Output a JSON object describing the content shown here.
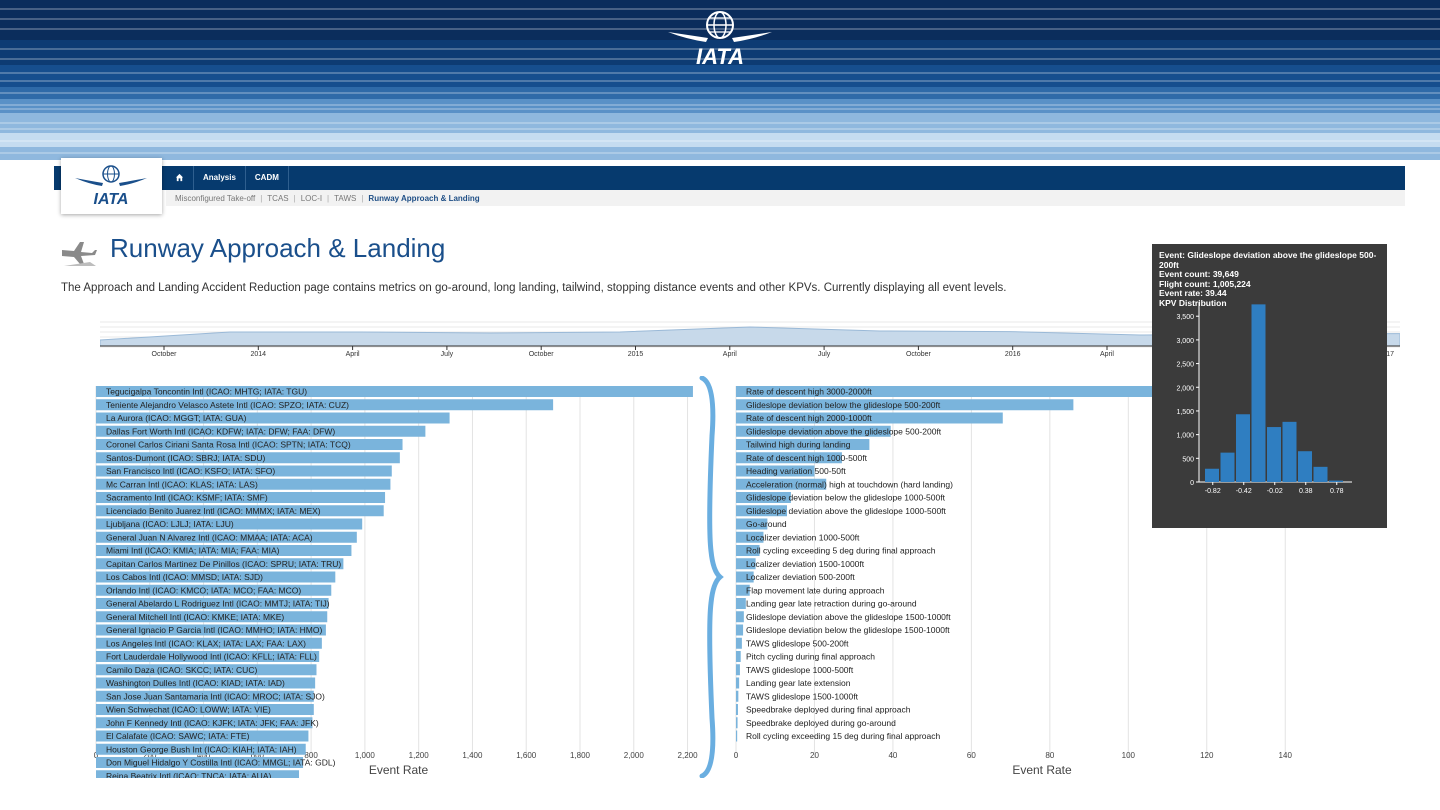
{
  "banner": {
    "brand": "IATA",
    "colors": [
      "#0b2d5c",
      "#0d3b73",
      "#164e8e",
      "#2f6aa8",
      "#5a91c7",
      "#8fb8de",
      "#c5dcf0"
    ]
  },
  "header": {
    "logo_text": "IATA",
    "nav": [
      {
        "label": "",
        "icon": "home-icon"
      },
      {
        "label": "Analysis"
      },
      {
        "label": "CADM"
      }
    ],
    "subnav": [
      {
        "label": "Misconfigured Take-off"
      },
      {
        "label": "TCAS"
      },
      {
        "label": "LOC-I"
      },
      {
        "label": "TAWS"
      },
      {
        "label": "Runway Approach & Landing",
        "active": true
      }
    ]
  },
  "page": {
    "title": "Runway Approach & Landing",
    "description": "The Approach and Landing Accident Reduction page contains metrics on go-around, long landing, tailwind, stopping distance events and other KPVs. Currently displaying all event levels."
  },
  "timeline": {
    "ticks": [
      "October",
      "2014",
      "April",
      "July",
      "October",
      "2015",
      "April",
      "July",
      "October",
      "2016",
      "April"
    ],
    "end_label": "17",
    "color": "#9ab9d7"
  },
  "airport_chart": {
    "xlabel": "Event Rate",
    "ticks": [
      "0",
      "200",
      "400",
      "600",
      "800",
      "1,000",
      "1,200",
      "1,400",
      "1,600",
      "1,800",
      "2,000",
      "2,200"
    ],
    "xlim": [
      0,
      2250
    ],
    "bar_color": "#7ab4dc",
    "items": [
      {
        "label": "Tegucigalpa Toncontin Intl (ICAO: MHTG; IATA: TGU)",
        "value": 2220
      },
      {
        "label": "Teniente Alejandro Velasco Astete Intl (ICAO: SPZO; IATA: CUZ)",
        "value": 1700
      },
      {
        "label": "La Aurora (ICAO: MGGT; IATA: GUA)",
        "value": 1315
      },
      {
        "label": "Dallas Fort Worth Intl (ICAO: KDFW; IATA: DFW; FAA: DFW)",
        "value": 1225
      },
      {
        "label": "Coronel Carlos Ciriani Santa Rosa Intl (ICAO: SPTN; IATA: TCQ)",
        "value": 1140
      },
      {
        "label": "Santos-Dumont (ICAO: SBRJ; IATA: SDU)",
        "value": 1130
      },
      {
        "label": "San Francisco Intl (ICAO: KSFO; IATA: SFO)",
        "value": 1100
      },
      {
        "label": "Mc Carran Intl (ICAO: KLAS; IATA: LAS)",
        "value": 1095
      },
      {
        "label": "Sacramento Intl (ICAO: KSMF; IATA: SMF)",
        "value": 1075
      },
      {
        "label": "Licenciado Benito Juarez Intl (ICAO: MMMX; IATA: MEX)",
        "value": 1070
      },
      {
        "label": "Ljubljana (ICAO: LJLJ; IATA: LJU)",
        "value": 990
      },
      {
        "label": "General Juan N Alvarez Intl (ICAO: MMAA; IATA: ACA)",
        "value": 970
      },
      {
        "label": "Miami Intl (ICAO: KMIA; IATA: MIA; FAA: MIA)",
        "value": 950
      },
      {
        "label": "Capitan Carlos Martinez De Pinillos (ICAO: SPRU; IATA: TRU)",
        "value": 920
      },
      {
        "label": "Los Cabos Intl (ICAO: MMSD; IATA: SJD)",
        "value": 890
      },
      {
        "label": "Orlando Intl (ICAO: KMCO; IATA: MCO; FAA: MCO)",
        "value": 875
      },
      {
        "label": "General Abelardo L Rodriguez Intl (ICAO: MMTJ; IATA: TIJ)",
        "value": 865
      },
      {
        "label": "General Mitchell Intl (ICAO: KMKE; IATA: MKE)",
        "value": 860
      },
      {
        "label": "General Ignacio P Garcia Intl (ICAO: MMHO; IATA: HMO)",
        "value": 855
      },
      {
        "label": "Los Angeles Intl (ICAO: KLAX; IATA: LAX; FAA: LAX)",
        "value": 840
      },
      {
        "label": "Fort Lauderdale Hollywood Intl (ICAO: KFLL; IATA: FLL)",
        "value": 830
      },
      {
        "label": "Camilo Daza (ICAO: SKCC; IATA: CUC)",
        "value": 820
      },
      {
        "label": "Washington Dulles Intl (ICAO: KIAD; IATA: IAD)",
        "value": 815
      },
      {
        "label": "San Jose Juan Santamaria Intl (ICAO: MROC; IATA: SJO)",
        "value": 810
      },
      {
        "label": "Wien Schwechat (ICAO: LOWW; IATA: VIE)",
        "value": 810
      },
      {
        "label": "John F Kennedy Intl (ICAO: KJFK; IATA: JFK; FAA: JFK)",
        "value": 805
      },
      {
        "label": "El Calafate (ICAO: SAWC; IATA: FTE)",
        "value": 790
      },
      {
        "label": "Houston George Bush Int (ICAO: KIAH; IATA: IAH)",
        "value": 780
      },
      {
        "label": "Don Miguel Hidalgo Y Costilla Intl (ICAO: MMGL; IATA: GDL)",
        "value": 770
      },
      {
        "label": "Reina Beatrix Intl (ICAO: TNCA; IATA: AUA)",
        "value": 755
      }
    ]
  },
  "event_chart": {
    "xlabel": "Event Rate",
    "ticks": [
      "0",
      "20",
      "40",
      "60",
      "80",
      "100",
      "120",
      "140"
    ],
    "xlim": [
      0,
      156
    ],
    "bar_color": "#7ab4dc",
    "items": [
      {
        "label": "Rate of descent high 3000-2000ft",
        "value": 150
      },
      {
        "label": "Glideslope deviation below the glideslope 500-200ft",
        "value": 86
      },
      {
        "label": "Rate of descent high 2000-1000ft",
        "value": 68
      },
      {
        "label": "Glideslope deviation above the glideslope 500-200ft",
        "value": 39.44
      },
      {
        "label": "Tailwind high during landing",
        "value": 34
      },
      {
        "label": "Rate of descent high 1000-500ft",
        "value": 27
      },
      {
        "label": "Heading variation 500-50ft",
        "value": 20
      },
      {
        "label": "Acceleration (normal) high at touchdown (hard landing)",
        "value": 23
      },
      {
        "label": "Glideslope deviation below the glideslope 1000-500ft",
        "value": 14
      },
      {
        "label": "Glideslope deviation above the glideslope 1000-500ft",
        "value": 13
      },
      {
        "label": "Go-around",
        "value": 8
      },
      {
        "label": "Localizer deviation 1000-500ft",
        "value": 7
      },
      {
        "label": "Roll cycling exceeding 5 deg during final approach",
        "value": 6
      },
      {
        "label": "Localizer deviation 1500-1000ft",
        "value": 5
      },
      {
        "label": "Localizer deviation 500-200ft",
        "value": 4.5
      },
      {
        "label": "Flap movement late during approach",
        "value": 3.5
      },
      {
        "label": "Landing gear late retraction during go-around",
        "value": 2.5
      },
      {
        "label": "Glideslope deviation above the glideslope 1500-1000ft",
        "value": 2
      },
      {
        "label": "Glideslope deviation below the glideslope 1500-1000ft",
        "value": 1.8
      },
      {
        "label": "TAWS glideslope 500-200ft",
        "value": 1.5
      },
      {
        "label": "Pitch cycling during final approach",
        "value": 1.2
      },
      {
        "label": "TAWS glideslope 1000-500ft",
        "value": 1.0
      },
      {
        "label": "Landing gear late extension",
        "value": 0.8
      },
      {
        "label": "TAWS glideslope 1500-1000ft",
        "value": 0.6
      },
      {
        "label": "Speedbrake deployed during final approach",
        "value": 0.5
      },
      {
        "label": "Speedbrake deployed during go-around",
        "value": 0.4
      },
      {
        "label": "Roll cycling exceeding 15 deg during final approach",
        "value": 0.3
      }
    ]
  },
  "tooltip": {
    "event_line": "Event: Glideslope deviation above the glideslope 500-200ft",
    "count_line": "Event count: 39,649",
    "flight_line": "Flight count: 1,005,224",
    "rate_line": "Event rate: 39.44",
    "dist_title": "KPV Distribution",
    "bar_color": "#2f7ec1",
    "bg_color": "#3b3b3b"
  },
  "chart_data": [
    {
      "type": "bar",
      "title": "",
      "xlabel": "Event Rate",
      "ylabel": "",
      "xlim": [
        0,
        2250
      ],
      "categories": [
        "Tegucigalpa Toncontin Intl (ICAO: MHTG; IATA: TGU)",
        "Teniente Alejandro Velasco Astete Intl (ICAO: SPZO; IATA: CUZ)",
        "La Aurora (ICAO: MGGT; IATA: GUA)",
        "Dallas Fort Worth Intl (ICAO: KDFW; IATA: DFW; FAA: DFW)",
        "Coronel Carlos Ciriani Santa Rosa Intl (ICAO: SPTN; IATA: TCQ)",
        "Santos-Dumont (ICAO: SBRJ; IATA: SDU)",
        "San Francisco Intl (ICAO: KSFO; IATA: SFO)",
        "Mc Carran Intl (ICAO: KLAS; IATA: LAS)",
        "Sacramento Intl (ICAO: KSMF; IATA: SMF)",
        "Licenciado Benito Juarez Intl (ICAO: MMMX; IATA: MEX)",
        "Ljubljana (ICAO: LJLJ; IATA: LJU)",
        "General Juan N Alvarez Intl (ICAO: MMAA; IATA: ACA)",
        "Miami Intl (ICAO: KMIA; IATA: MIA; FAA: MIA)",
        "Capitan Carlos Martinez De Pinillos (ICAO: SPRU; IATA: TRU)",
        "Los Cabos Intl (ICAO: MMSD; IATA: SJD)",
        "Orlando Intl (ICAO: KMCO; IATA: MCO; FAA: MCO)",
        "General Abelardo L Rodriguez Intl (ICAO: MMTJ; IATA: TIJ)",
        "General Mitchell Intl (ICAO: KMKE; IATA: MKE)",
        "General Ignacio P Garcia Intl (ICAO: MMHO; IATA: HMO)",
        "Los Angeles Intl (ICAO: KLAX; IATA: LAX; FAA: LAX)",
        "Fort Lauderdale Hollywood Intl (ICAO: KFLL; IATA: FLL)",
        "Camilo Daza (ICAO: SKCC; IATA: CUC)",
        "Washington Dulles Intl (ICAO: KIAD; IATA: IAD)",
        "San Jose Juan Santamaria Intl (ICAO: MROC; IATA: SJO)",
        "Wien Schwechat (ICAO: LOWW; IATA: VIE)",
        "John F Kennedy Intl (ICAO: KJFK; IATA: JFK; FAA: JFK)",
        "El Calafate (ICAO: SAWC; IATA: FTE)",
        "Houston George Bush Int (ICAO: KIAH; IATA: IAH)",
        "Don Miguel Hidalgo Y Costilla Intl (ICAO: MMGL; IATA: GDL)",
        "Reina Beatrix Intl (ICAO: TNCA; IATA: AUA)"
      ],
      "values": [
        2220,
        1700,
        1315,
        1225,
        1140,
        1130,
        1100,
        1095,
        1075,
        1070,
        990,
        970,
        950,
        920,
        890,
        875,
        865,
        860,
        855,
        840,
        830,
        820,
        815,
        810,
        810,
        805,
        790,
        780,
        770,
        755
      ]
    },
    {
      "type": "bar",
      "title": "",
      "xlabel": "Event Rate",
      "ylabel": "",
      "xlim": [
        0,
        156
      ],
      "categories": [
        "Rate of descent high 3000-2000ft",
        "Glideslope deviation below the glideslope 500-200ft",
        "Rate of descent high 2000-1000ft",
        "Glideslope deviation above the glideslope 500-200ft",
        "Tailwind high during landing",
        "Rate of descent high 1000-500ft",
        "Heading variation 500-50ft",
        "Acceleration (normal) high at touchdown (hard landing)",
        "Glideslope deviation below the glideslope 1000-500ft",
        "Glideslope deviation above the glideslope 1000-500ft",
        "Go-around",
        "Localizer deviation 1000-500ft",
        "Roll cycling exceeding 5 deg during final approach",
        "Localizer deviation 1500-1000ft",
        "Localizer deviation 500-200ft",
        "Flap movement late during approach",
        "Landing gear late retraction during go-around",
        "Glideslope deviation above the glideslope 1500-1000ft",
        "Glideslope deviation below the glideslope 1500-1000ft",
        "TAWS glideslope 500-200ft",
        "Pitch cycling during final approach",
        "TAWS glideslope 1000-500ft",
        "Landing gear late extension",
        "TAWS glideslope 1500-1000ft",
        "Speedbrake deployed during final approach",
        "Speedbrake deployed during go-around",
        "Roll cycling exceeding 15 deg during final approach"
      ],
      "values": [
        150,
        86,
        68,
        39.44,
        34,
        27,
        20,
        23,
        14,
        13,
        8,
        7,
        6,
        5,
        4.5,
        3.5,
        2.5,
        2,
        1.8,
        1.5,
        1.2,
        1.0,
        0.8,
        0.6,
        0.5,
        0.4,
        0.3
      ]
    },
    {
      "type": "bar",
      "title": "KPV Distribution",
      "xlabel": "",
      "ylabel": "",
      "ylim": [
        0,
        3800
      ],
      "x_ticks": [
        "-0.82",
        "-0.42",
        "-0.02",
        "0.38",
        "0.78"
      ],
      "y_ticks": [
        "0",
        "500",
        "1,000",
        "1,500",
        "2,000",
        "2,500",
        "3,000",
        "3,500"
      ],
      "x": [
        -0.82,
        -0.62,
        -0.42,
        -0.22,
        -0.02,
        0.18,
        0.38,
        0.58,
        0.78
      ],
      "values": [
        280,
        620,
        1430,
        3750,
        1160,
        1270,
        650,
        320,
        30
      ]
    },
    {
      "type": "area",
      "title": "",
      "x": [
        "October",
        "2014",
        "April",
        "July",
        "October",
        "2015",
        "April",
        "July",
        "October",
        "2016",
        "April"
      ],
      "values": [
        0.3,
        0.7,
        0.7,
        0.65,
        0.7,
        0.95,
        0.75,
        0.72,
        0.55,
        0.6,
        0.62
      ]
    }
  ]
}
